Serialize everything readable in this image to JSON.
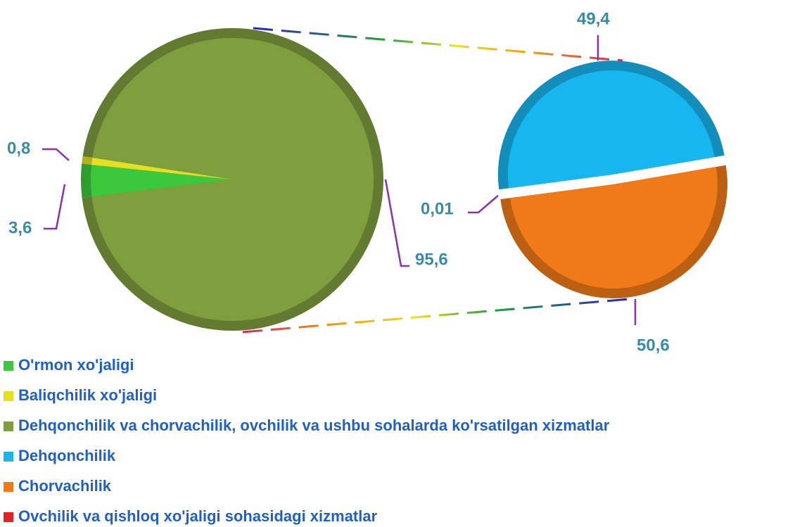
{
  "chart_data": [
    {
      "type": "pie",
      "categories": [
        "O'rmon xo'jaligi",
        "Baliqchilik xo'jaligi",
        "Dehqonchilik va chorvachilik, ovchilik va ushbu sohalarda ko'rsatilgan xizmatlar"
      ],
      "values": [
        3.6,
        0.8,
        95.6
      ],
      "value_labels": [
        "3,6",
        "0,8",
        "95,6"
      ],
      "colors": [
        "#3cc83c",
        "#e6e020",
        "#7f9e3e"
      ]
    },
    {
      "type": "pie",
      "categories": [
        "Dehqonchilik",
        "Chorvachilik",
        "Ovchilik va qishloq xo'jaligi sohasidagi xizmatlar"
      ],
      "values": [
        49.4,
        50.6,
        0.01
      ],
      "value_labels": [
        "49,4",
        "50,6",
        "0,01"
      ],
      "colors": [
        "#18b6f0",
        "#f07a18",
        "#e02424"
      ]
    }
  ]
}
